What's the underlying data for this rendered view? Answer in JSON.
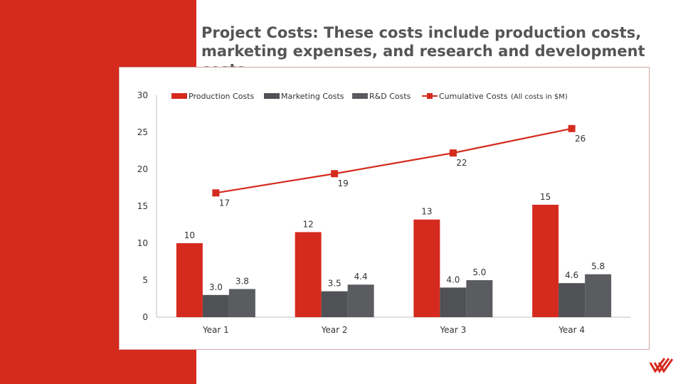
{
  "slide": {
    "title": "Project Costs: These costs include production costs, marketing expenses, and research and development costs",
    "accent_color": "#D52B1E",
    "logo_icon": "brand-chevron-logo"
  },
  "chart_data": {
    "type": "bar",
    "note": "(All costs in $M)",
    "categories": [
      "Year 1",
      "Year 2",
      "Year 3",
      "Year 4"
    ],
    "ylim": [
      0,
      30
    ],
    "yticks": [
      0,
      5,
      10,
      15,
      20,
      25,
      30
    ],
    "legend_position": "top",
    "grid": false,
    "series": [
      {
        "name": "Production Costs",
        "type": "bar",
        "color": "#D52B1E",
        "values": [
          10,
          11.5,
          13.2,
          15.2
        ],
        "labels": [
          "10",
          "12",
          "13",
          "15"
        ]
      },
      {
        "name": "Marketing Costs",
        "type": "bar",
        "color": "#4F5155",
        "values": [
          3.0,
          3.5,
          4.0,
          4.6
        ],
        "labels": [
          "3.0",
          "3.5",
          "4.0",
          "4.6"
        ]
      },
      {
        "name": "R&D Costs",
        "type": "bar",
        "color": "#5A5C60",
        "values": [
          3.8,
          4.4,
          5.0,
          5.8
        ],
        "labels": [
          "3.8",
          "4.4",
          "5.0",
          "5.8"
        ]
      },
      {
        "name": "Cumulative Costs",
        "type": "line",
        "color": "#D52B1E",
        "values": [
          16.8,
          19.4,
          22.2,
          25.5
        ],
        "labels": [
          "17",
          "19",
          "22",
          "26"
        ]
      }
    ]
  }
}
